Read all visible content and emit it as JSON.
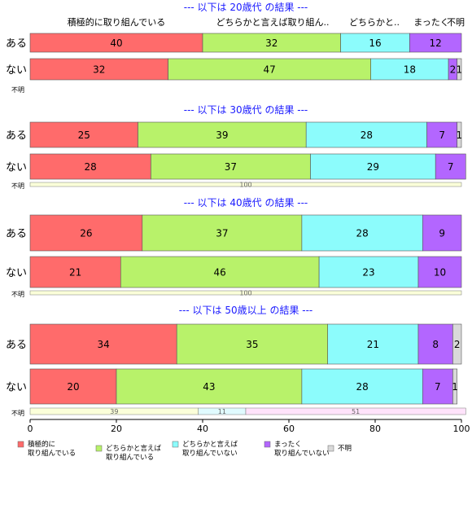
{
  "chart_data": {
    "type": "bar",
    "orientation": "horizontal",
    "stacked": true,
    "xlim": [
      0,
      100
    ],
    "x_ticks": [
      0,
      20,
      40,
      60,
      80,
      100
    ],
    "colors": [
      "#ff6b6b",
      "#b8f26a",
      "#8cfcfc",
      "#b366ff",
      "#d9d9d9"
    ],
    "legend": {
      "placement": "bottom-left",
      "entries": [
        [
          "積極的に",
          "取り組んでいる"
        ],
        [
          "どちらかと言えば",
          "取り組んでいる"
        ],
        [
          "どちらかと言えば",
          "取り組んでいない"
        ],
        [
          "まったく",
          "取り組んでいない"
        ],
        [
          "不明"
        ]
      ]
    },
    "top_headers": [
      "積極的に取り組んでいる",
      "どちらかと言えば取り組ん..",
      "どちらかと..",
      "まったく",
      "不明"
    ],
    "panels": [
      {
        "title": "--- 以下は 20歳代 の結果 ---",
        "rows": [
          {
            "label": "ある",
            "values": [
              40,
              32,
              16,
              12,
              0
            ]
          },
          {
            "label": "ない",
            "values": [
              32,
              47,
              18,
              2,
              1
            ]
          }
        ],
        "unknown": {
          "label": "不明",
          "values": [],
          "labels": []
        }
      },
      {
        "title": "--- 以下は 30歳代 の結果 ---",
        "rows": [
          {
            "label": "ある",
            "values": [
              25,
              39,
              28,
              7,
              1
            ]
          },
          {
            "label": "ない",
            "values": [
              28,
              37,
              29,
              7,
              0
            ]
          }
        ],
        "unknown": {
          "label": "不明",
          "values": [
            0,
            100,
            0,
            0,
            0
          ],
          "labels": [
            "",
            "100",
            "",
            "",
            ""
          ]
        }
      },
      {
        "title": "--- 以下は 40歳代 の結果 ---",
        "rows": [
          {
            "label": "ある",
            "values": [
              26,
              37,
              28,
              9,
              0
            ]
          },
          {
            "label": "ない",
            "values": [
              21,
              46,
              23,
              10,
              0
            ]
          }
        ],
        "unknown": {
          "label": "不明",
          "values": [
            0,
            100,
            0,
            0,
            0
          ],
          "labels": [
            "",
            "100",
            "",
            "",
            ""
          ]
        }
      },
      {
        "title": "--- 以下は 50歳以上 の結果 ---",
        "rows": [
          {
            "label": "ある",
            "values": [
              34,
              35,
              21,
              8,
              2
            ]
          },
          {
            "label": "ない",
            "values": [
              20,
              43,
              28,
              7,
              1
            ]
          }
        ],
        "unknown": {
          "label": "不明",
          "values": [
            0,
            39,
            11,
            51,
            0
          ],
          "labels": [
            "",
            "39",
            "11",
            "51",
            ""
          ]
        }
      }
    ]
  }
}
